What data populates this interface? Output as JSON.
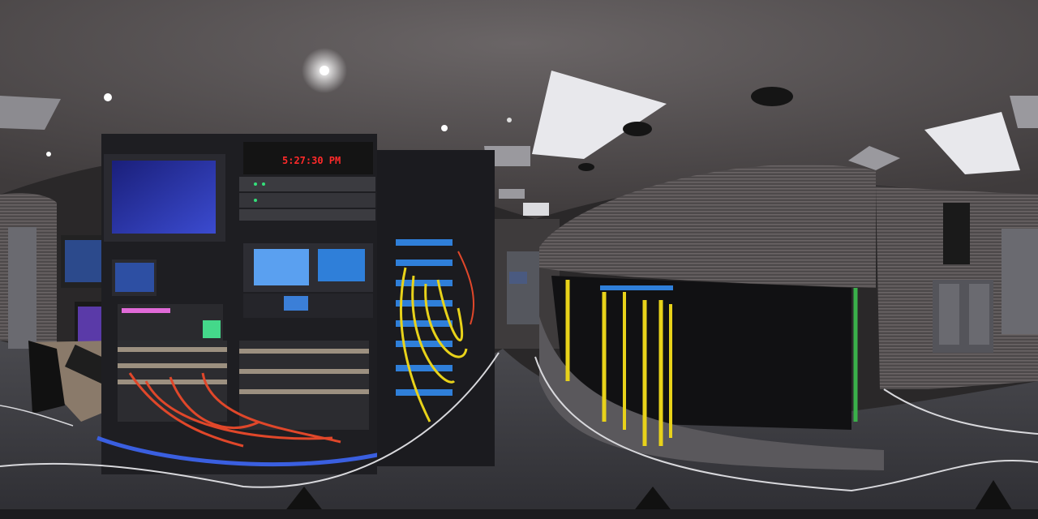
{
  "scene": {
    "description_name": "broadcast-truck-equipment-room-panorama",
    "colors": {
      "ceiling": "#5a5657",
      "wall": "#4a4647",
      "floor": "#3e3d40",
      "rack": "#1e1e22",
      "fiber_yellow": "#e8d21a",
      "cable_orange": "#e0472a",
      "patch_blue": "#2f7fd9",
      "floor_line": "#d8d8dc",
      "clock_red": "#ff2a2a"
    }
  },
  "clock": {
    "time": "5:27:30 PM"
  }
}
